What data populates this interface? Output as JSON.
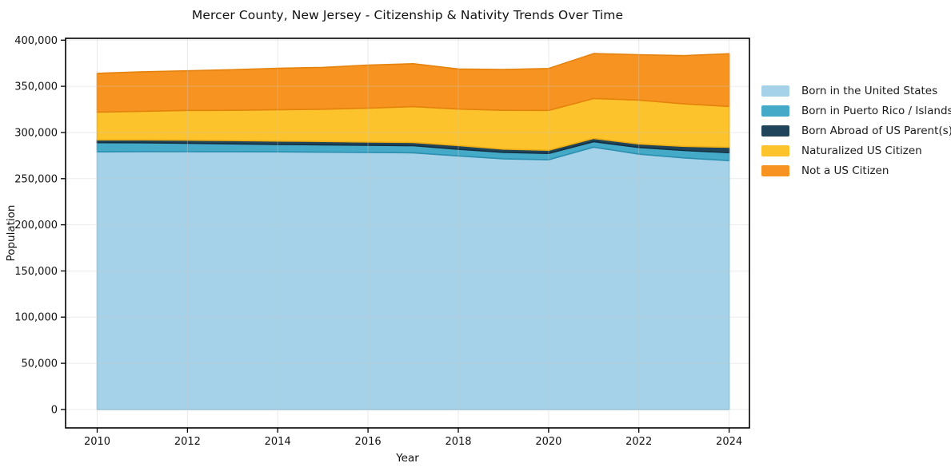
{
  "title": "Mercer County, New Jersey - Citizenship & Nativity Trends Over Time",
  "chart_data": {
    "type": "area",
    "stacked": true,
    "title": "Mercer County, New Jersey - Citizenship & Nativity Trends Over Time",
    "xlabel": "Year",
    "ylabel": "Population",
    "grid": true,
    "legend_position": "right",
    "x": [
      2010,
      2011,
      2012,
      2013,
      2014,
      2015,
      2016,
      2017,
      2018,
      2019,
      2020,
      2021,
      2022,
      2023,
      2024
    ],
    "series": [
      {
        "id": "born-in-us",
        "name": "Born in the United States",
        "color": "#a5d2e8",
        "edge": "#8ec2dc",
        "values": [
          279000,
          279300,
          279200,
          279100,
          279000,
          278700,
          278300,
          278000,
          274600,
          271500,
          270500,
          284100,
          276500,
          272500,
          269500
        ]
      },
      {
        "id": "born-puerto-rico-islands",
        "name": "Born in Puerto Rico / Islands",
        "color": "#45a9c8",
        "edge": "#2b8fb0",
        "values": [
          10000,
          9600,
          9200,
          8600,
          8000,
          7900,
          7800,
          7700,
          7200,
          7000,
          6800,
          5900,
          7300,
          8000,
          8700
        ]
      },
      {
        "id": "born-abroad-us-parents",
        "name": "Born Abroad of US Parent(s)",
        "color": "#20455a",
        "edge": "#152f3f",
        "values": [
          3000,
          3100,
          3300,
          3500,
          3700,
          3700,
          3600,
          3500,
          4100,
          3500,
          3500,
          3600,
          3800,
          4500,
          5800
        ]
      },
      {
        "id": "naturalized-citizen",
        "name": "Naturalized US Citizen",
        "color": "#fcc32d",
        "edge": "#efae13",
        "values": [
          30100,
          31000,
          32200,
          32800,
          34000,
          34900,
          36700,
          38800,
          39500,
          42000,
          43100,
          43200,
          47500,
          46000,
          44200
        ]
      },
      {
        "id": "not-us-citizen",
        "name": "Not a US Citizen",
        "color": "#f79421",
        "edge": "#e5820d",
        "values": [
          41900,
          42800,
          42900,
          44000,
          44900,
          45300,
          46600,
          46500,
          43400,
          44300,
          45400,
          48700,
          49200,
          52200,
          57100
        ]
      }
    ],
    "x_ticks": [
      {
        "value": 2010,
        "label": "2010"
      },
      {
        "value": 2012,
        "label": "2012"
      },
      {
        "value": 2014,
        "label": "2014"
      },
      {
        "value": 2016,
        "label": "2016"
      },
      {
        "value": 2018,
        "label": "2018"
      },
      {
        "value": 2020,
        "label": "2020"
      },
      {
        "value": 2022,
        "label": "2022"
      },
      {
        "value": 2024,
        "label": "2024"
      }
    ],
    "y_ticks": [
      {
        "value": 0,
        "label": "0"
      },
      {
        "value": 50000,
        "label": "50,000"
      },
      {
        "value": 100000,
        "label": "100,000"
      },
      {
        "value": 150000,
        "label": "150,000"
      },
      {
        "value": 200000,
        "label": "200,000"
      },
      {
        "value": 250000,
        "label": "250,000"
      },
      {
        "value": 300000,
        "label": "300,000"
      },
      {
        "value": 350000,
        "label": "350,000"
      },
      {
        "value": 400000,
        "label": "400,000"
      }
    ],
    "xlim": [
      2009.3,
      2024.45
    ],
    "ylim": [
      -20000,
      402000
    ],
    "axis_color": "#000000",
    "grid_color": "#c9c9c9",
    "tick_label_color": "#111111"
  }
}
